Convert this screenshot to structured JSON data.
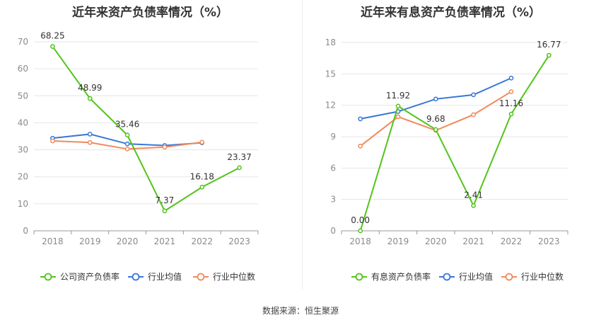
{
  "chart_data": [
    {
      "type": "line",
      "title": "近年来资产负债率情况（%）",
      "categories": [
        "2018",
        "2019",
        "2020",
        "2021",
        "2022",
        "2023"
      ],
      "ylim": [
        0,
        70
      ],
      "yticks": [
        0,
        10,
        20,
        30,
        40,
        50,
        60,
        70
      ],
      "grid": true,
      "legend_position": "bottom",
      "series": [
        {
          "name": "公司资产负债率",
          "color": "#52c41a",
          "values": [
            68.25,
            48.99,
            35.46,
            7.37,
            16.18,
            23.37
          ],
          "labels": [
            "68.25",
            "48.99",
            "35.46",
            "7.37",
            "16.18",
            "23.37"
          ]
        },
        {
          "name": "行业均值",
          "color": "#3a77d8",
          "values": [
            34.3,
            35.8,
            32.2,
            31.6,
            32.6,
            null
          ],
          "labels": []
        },
        {
          "name": "行业中位数",
          "color": "#f08a5d",
          "values": [
            33.3,
            32.7,
            30.3,
            31.0,
            32.8,
            null
          ],
          "labels": []
        }
      ]
    },
    {
      "type": "line",
      "title": "近年来有息资产负债率情况（%）",
      "categories": [
        "2018",
        "2019",
        "2020",
        "2021",
        "2022",
        "2023"
      ],
      "ylim": [
        0,
        18
      ],
      "yticks": [
        0,
        3,
        6,
        9,
        12,
        15,
        18
      ],
      "grid": true,
      "legend_position": "bottom",
      "series": [
        {
          "name": "有息资产负债率",
          "color": "#52c41a",
          "values": [
            0.0,
            11.92,
            9.68,
            2.41,
            11.16,
            16.77
          ],
          "labels": [
            "0.00",
            "11.92",
            "9.68",
            "2.41",
            "11.16",
            "16.77"
          ]
        },
        {
          "name": "行业均值",
          "color": "#3a77d8",
          "values": [
            10.7,
            11.4,
            12.6,
            13.0,
            14.6,
            null
          ],
          "labels": []
        },
        {
          "name": "行业中位数",
          "color": "#f08a5d",
          "values": [
            8.1,
            10.9,
            9.6,
            11.1,
            13.3,
            null
          ],
          "labels": []
        }
      ]
    }
  ],
  "source": "数据来源：恒生聚源"
}
